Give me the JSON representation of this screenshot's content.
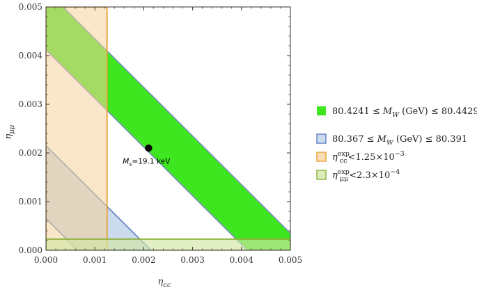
{
  "chart_data": {
    "type": "area",
    "title": "",
    "xlabel": "η_cc",
    "ylabel": "η_μμ",
    "xlim": [
      0,
      0.005
    ],
    "ylim": [
      0,
      0.005
    ],
    "x_ticks": [
      "0.000",
      "0.001",
      "0.002",
      "0.003",
      "0.004",
      "0.005"
    ],
    "y_ticks": [
      "0.000",
      "0.001",
      "0.002",
      "0.003",
      "0.004",
      "0.005"
    ],
    "grid": false,
    "legend_position": "right",
    "series": [
      {
        "name": "80.4241 ≤ M_W (GeV) ≤ 80.4429",
        "kind": "diagonal_band",
        "sum_min": 0.00412,
        "sum_max": 0.00535,
        "fill": "#3ee61f",
        "stroke": "#7a8fc2",
        "fill_opacity": 1
      },
      {
        "name": "80.367 ≤ M_W (GeV) ≤ 80.391",
        "kind": "diagonal_band",
        "sum_min": 0.00065,
        "sum_max": 0.00215,
        "fill": "#b9cde6",
        "stroke": "#5b7fc4",
        "fill_opacity": 0.75
      },
      {
        "name": "η_cc^exp<1.25×10^−3",
        "kind": "rect",
        "x_range": [
          0,
          0.00125
        ],
        "y_range": [
          0,
          0.005
        ],
        "fill": "#f6d29c",
        "stroke": "#e8a23a",
        "fill_opacity": 0.55
      },
      {
        "name": "η_μμ^exp<2.3×10^−4",
        "kind": "rect",
        "x_range": [
          0,
          0.005
        ],
        "y_range": [
          0,
          0.00023
        ],
        "fill": "#d2e6a4",
        "stroke": "#8cb038",
        "fill_opacity": 0.65
      }
    ],
    "points": [
      {
        "x": 0.0021,
        "y": 0.0021,
        "color": "#000000"
      }
    ],
    "annotations": [
      {
        "text_pre": "M",
        "text_sub": "s",
        "text_post": "=19.1 keV",
        "x": 0.00157,
        "y": 0.00178
      }
    ],
    "legend": [
      {
        "pre": "80.4241 ≤ ",
        "var": "M",
        "sub": "W",
        "post": " (GeV) ≤ 80.4429"
      },
      {
        "pre": "80.367 ≤ ",
        "var": "M",
        "sub": "W",
        "post": " (GeV) ≤ 80.391"
      },
      {
        "var": "η",
        "sub": "cc",
        "sup": "exp",
        "post": "<1.25×10",
        "post_sup": "−3"
      },
      {
        "var": "η",
        "sub": "μμ",
        "sup": "exp",
        "post": "<2.3×10",
        "post_sup": "−4"
      }
    ]
  }
}
